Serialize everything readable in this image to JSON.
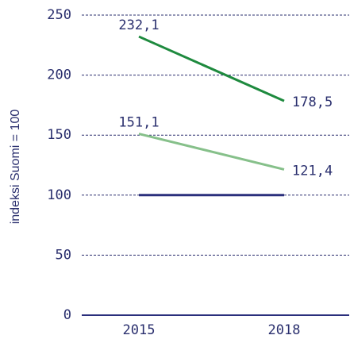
{
  "chart_data": {
    "type": "line",
    "y_label": "indeksi Suomi = 100",
    "categories": [
      "2015",
      "2018"
    ],
    "series": [
      {
        "color": "#1e8a3e",
        "values": [
          232.1,
          178.5
        ],
        "value_labels": [
          "232,1",
          "178,5"
        ]
      },
      {
        "color": "#86c08a",
        "values": [
          151.1,
          121.4
        ],
        "value_labels": [
          "151,1",
          "121,4"
        ]
      },
      {
        "color": "#2a2f7c",
        "values": [
          100,
          100
        ]
      }
    ],
    "ylim": [
      0,
      250
    ],
    "yticks": [
      0,
      50,
      100,
      150,
      200,
      250
    ],
    "grid": true
  }
}
